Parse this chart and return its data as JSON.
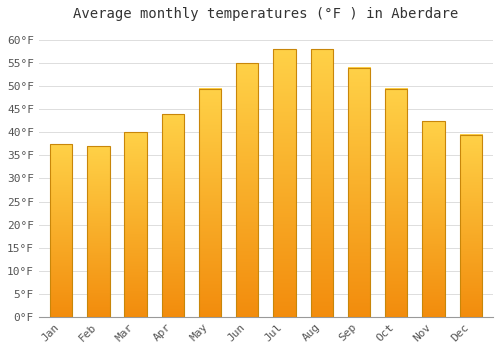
{
  "title": "Average monthly temperatures (°F ) in Aberdare",
  "months": [
    "Jan",
    "Feb",
    "Mar",
    "Apr",
    "May",
    "Jun",
    "Jul",
    "Aug",
    "Sep",
    "Oct",
    "Nov",
    "Dec"
  ],
  "values": [
    37.5,
    37.0,
    40.0,
    44.0,
    49.5,
    55.0,
    58.0,
    58.0,
    54.0,
    49.5,
    42.5,
    39.5
  ],
  "bar_color_bright": "#FFB74D",
  "bar_color_mid": "#FFA726",
  "bar_color_dark": "#E65100",
  "bar_edge_color": "#B8860B",
  "background_color": "#FFFFFF",
  "plot_bg_color": "#FFFFFF",
  "grid_color": "#DDDDDD",
  "ylim": [
    0,
    63
  ],
  "yticks": [
    0,
    5,
    10,
    15,
    20,
    25,
    30,
    35,
    40,
    45,
    50,
    55,
    60
  ],
  "ytick_labels": [
    "0°F",
    "5°F",
    "10°F",
    "15°F",
    "20°F",
    "25°F",
    "30°F",
    "35°F",
    "40°F",
    "45°F",
    "50°F",
    "55°F",
    "60°F"
  ],
  "title_fontsize": 10,
  "tick_fontsize": 8,
  "font_family": "monospace"
}
